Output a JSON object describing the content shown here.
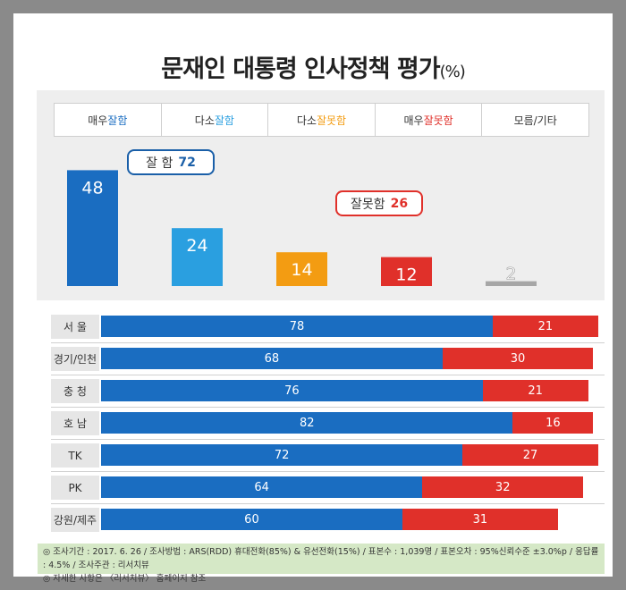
{
  "title": "문재인 대통령 인사정책 평가",
  "title_unit": "(%)",
  "header": [
    {
      "prefix": "매우 ",
      "word": "잘함",
      "color": "#1a6dc1"
    },
    {
      "prefix": "다소 ",
      "word": "잘함",
      "color": "#2a9fe0"
    },
    {
      "prefix": "다소 ",
      "word": "잘못함",
      "color": "#f39c12"
    },
    {
      "prefix": "매우 ",
      "word": "잘못함",
      "color": "#e0302a"
    },
    {
      "prefix": "",
      "word": "모름/기타",
      "color": "#333333"
    }
  ],
  "groups": {
    "good": {
      "label": "잘 함",
      "value": "72"
    },
    "bad": {
      "label": "잘못함",
      "value": "26"
    }
  },
  "chart_data": [
    {
      "type": "bar",
      "categories": [
        "매우 잘함",
        "다소 잘함",
        "다소 잘못함",
        "매우 잘못함",
        "모름/기타"
      ],
      "values": [
        48,
        24,
        14,
        12,
        2
      ],
      "colors": [
        "#1a6dc1",
        "#2a9fe0",
        "#f39c12",
        "#e0302a",
        "#a6a6a6"
      ]
    },
    {
      "type": "bar",
      "stacked": true,
      "orientation": "horizontal",
      "categories": [
        "서 울",
        "경기/인천",
        "충 청",
        "호 남",
        "TK",
        "PK",
        "강원/제주"
      ],
      "series": [
        {
          "values": [
            78,
            68,
            76,
            82,
            72,
            64,
            60
          ],
          "color": "#1a6dc1"
        },
        {
          "values": [
            21,
            30,
            21,
            16,
            27,
            32,
            31
          ],
          "color": "#e0302a"
        }
      ]
    }
  ],
  "footer": {
    "line1": "◎ 조사기간 : 2017. 6. 26 / 조사방법 : ARS(RDD) 휴대전화(85%) & 유선전화(15%) / 표본수 : 1,039명 / 표본오차 : 95%신뢰수준 ±3.0%p / 응답률 : 4.5% / 조사주관 : 리서치뷰",
    "line2": "◎ 자세한 사항은 〈리서치뷰〉 홈페이지 참조"
  }
}
